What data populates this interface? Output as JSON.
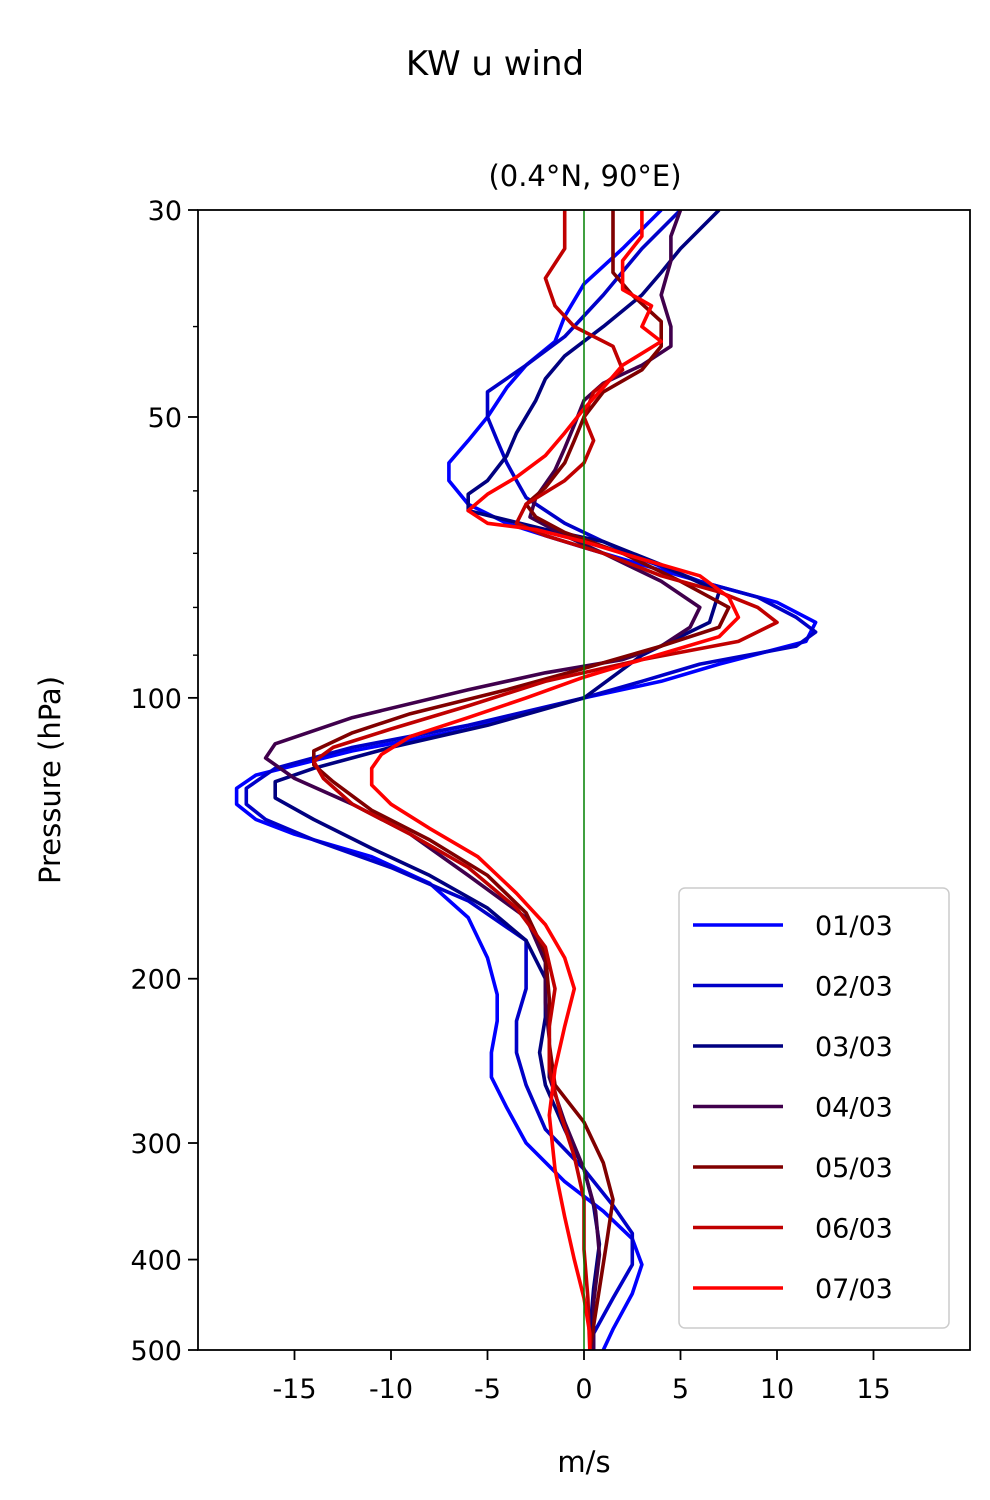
{
  "chart_data": {
    "type": "line",
    "title": "KW u wind",
    "subtitle": "(0.4°N, 90°E)",
    "xlabel": "m/s",
    "ylabel": "Pressure (hPa)",
    "xlim": [
      -20,
      20
    ],
    "ylim": [
      500,
      30
    ],
    "yscale": "log",
    "x_ticks": [
      -15,
      -10,
      -5,
      0,
      5,
      10,
      15
    ],
    "x_tick_labels": [
      "-15",
      "-10",
      "-5",
      "0",
      "5",
      "10",
      "15"
    ],
    "y_ticks": [
      30,
      50,
      100,
      200,
      300,
      400,
      500
    ],
    "y_tick_labels": [
      "30",
      "50",
      "100",
      "200",
      "300",
      "400",
      "500"
    ],
    "reference_line": {
      "x": 0,
      "color": "#008000"
    },
    "legend_position": "lower-right",
    "grid": false,
    "series": [
      {
        "name": "01/03",
        "color": "#0000ff",
        "points": [
          [
            4,
            30
          ],
          [
            2,
            33
          ],
          [
            0,
            36
          ],
          [
            -1,
            39
          ],
          [
            -1.5,
            41.5
          ],
          [
            -3,
            44
          ],
          [
            -4,
            46.5
          ],
          [
            -5,
            50
          ],
          [
            -6,
            53
          ],
          [
            -7,
            56
          ],
          [
            -7,
            58.5
          ],
          [
            -6,
            62
          ],
          [
            -4,
            65
          ],
          [
            -2,
            67
          ],
          [
            0,
            69
          ],
          [
            3,
            72
          ],
          [
            6,
            75
          ],
          [
            10,
            79
          ],
          [
            12,
            83
          ],
          [
            11.5,
            87
          ],
          [
            7,
            92
          ],
          [
            4,
            96
          ],
          [
            0,
            100
          ],
          [
            -6,
            108
          ],
          [
            -12,
            114
          ],
          [
            -17,
            121
          ],
          [
            -18,
            125
          ],
          [
            -18,
            130
          ],
          [
            -17,
            135
          ],
          [
            -15,
            140
          ],
          [
            -11,
            148
          ],
          [
            -8,
            158
          ],
          [
            -6,
            172
          ],
          [
            -5,
            190
          ],
          [
            -4.5,
            208
          ],
          [
            -4.5,
            222
          ],
          [
            -4.8,
            240
          ],
          [
            -4.8,
            255
          ],
          [
            -4,
            275
          ],
          [
            -3,
            300
          ],
          [
            -1,
            330
          ],
          [
            1,
            355
          ],
          [
            2.5,
            380
          ],
          [
            3,
            405
          ],
          [
            2.5,
            435
          ],
          [
            1.5,
            475
          ],
          [
            1,
            500
          ]
        ]
      },
      {
        "name": "02/03",
        "color": "#0000c8",
        "points": [
          [
            5,
            30
          ],
          [
            3,
            33
          ],
          [
            1,
            37
          ],
          [
            -1,
            41
          ],
          [
            -3,
            44
          ],
          [
            -5,
            47
          ],
          [
            -5,
            50
          ],
          [
            -4.5,
            53
          ],
          [
            -4,
            56
          ],
          [
            -3.5,
            58.5
          ],
          [
            -3,
            61
          ],
          [
            -1,
            65
          ],
          [
            1,
            68
          ],
          [
            3,
            71
          ],
          [
            6,
            75
          ],
          [
            9,
            78
          ],
          [
            11,
            82
          ],
          [
            12,
            85
          ],
          [
            11,
            88
          ],
          [
            6,
            92
          ],
          [
            3,
            96
          ],
          [
            0,
            100
          ],
          [
            -6,
            107
          ],
          [
            -12,
            113
          ],
          [
            -16,
            119
          ],
          [
            -17.5,
            125
          ],
          [
            -17.5,
            130
          ],
          [
            -16.5,
            135
          ],
          [
            -14,
            142
          ],
          [
            -10,
            152
          ],
          [
            -6,
            165
          ],
          [
            -3,
            182
          ],
          [
            -3,
            205
          ],
          [
            -3.5,
            222
          ],
          [
            -3.5,
            240
          ],
          [
            -3,
            260
          ],
          [
            -2,
            290
          ],
          [
            0,
            320
          ],
          [
            1.5,
            350
          ],
          [
            2.5,
            375
          ],
          [
            2.5,
            405
          ],
          [
            1.5,
            440
          ],
          [
            0.5,
            480
          ],
          [
            0.5,
            500
          ]
        ]
      },
      {
        "name": "03/03",
        "color": "#000080",
        "points": [
          [
            7,
            30
          ],
          [
            5,
            33
          ],
          [
            4,
            35
          ],
          [
            3,
            37
          ],
          [
            1,
            40
          ],
          [
            -1,
            43
          ],
          [
            -2,
            45.5
          ],
          [
            -2.5,
            48
          ],
          [
            -3.5,
            52
          ],
          [
            -4,
            55
          ],
          [
            -5,
            58.5
          ],
          [
            -6,
            60.5
          ],
          [
            -6,
            63
          ],
          [
            -2,
            66
          ],
          [
            1,
            68
          ],
          [
            4,
            72
          ],
          [
            7,
            77
          ],
          [
            6.5,
            83
          ],
          [
            3,
            90
          ],
          [
            0,
            100
          ],
          [
            -5,
            107
          ],
          [
            -10,
            113
          ],
          [
            -14,
            119
          ],
          [
            -16,
            123
          ],
          [
            -16,
            128
          ],
          [
            -14,
            135
          ],
          [
            -11,
            145
          ],
          [
            -8,
            155
          ],
          [
            -5,
            168
          ],
          [
            -3,
            182
          ],
          [
            -2,
            200
          ],
          [
            -2,
            220
          ],
          [
            -2.3,
            240
          ],
          [
            -2,
            260
          ],
          [
            -1,
            290
          ],
          [
            0,
            320
          ],
          [
            0.5,
            350
          ],
          [
            0.8,
            385
          ],
          [
            0.5,
            430
          ],
          [
            0.3,
            480
          ],
          [
            0.3,
            500
          ]
        ]
      },
      {
        "name": "04/03",
        "color": "#40004c",
        "points": [
          [
            5,
            30
          ],
          [
            4.5,
            32
          ],
          [
            4.5,
            34
          ],
          [
            4,
            37
          ],
          [
            4.5,
            40
          ],
          [
            4.5,
            42
          ],
          [
            3,
            44
          ],
          [
            1,
            46
          ],
          [
            0,
            48
          ],
          [
            -0.5,
            51
          ],
          [
            -1,
            54
          ],
          [
            -1.5,
            57
          ],
          [
            -2.5,
            61
          ],
          [
            -2.8,
            64
          ],
          [
            -1,
            67
          ],
          [
            1,
            70
          ],
          [
            4,
            75
          ],
          [
            6,
            80
          ],
          [
            5.5,
            84
          ],
          [
            4,
            88
          ],
          [
            2,
            91
          ],
          [
            -2,
            94
          ],
          [
            -6,
            98
          ],
          [
            -12,
            105
          ],
          [
            -16,
            112
          ],
          [
            -16.5,
            116
          ],
          [
            -15,
            122
          ],
          [
            -12,
            130
          ],
          [
            -9,
            140
          ],
          [
            -6,
            155
          ],
          [
            -3,
            172
          ],
          [
            -2,
            192
          ],
          [
            -2,
            212
          ],
          [
            -1.8,
            232
          ],
          [
            -1.8,
            255
          ],
          [
            -1,
            285
          ],
          [
            0,
            320
          ],
          [
            0.6,
            355
          ],
          [
            0.8,
            395
          ],
          [
            0.5,
            445
          ],
          [
            0.5,
            500
          ]
        ]
      },
      {
        "name": "05/03",
        "color": "#800000",
        "points": [
          [
            1.5,
            30
          ],
          [
            1.5,
            33
          ],
          [
            1.5,
            35
          ],
          [
            2.5,
            37
          ],
          [
            4,
            39.5
          ],
          [
            4,
            42
          ],
          [
            3,
            44.5
          ],
          [
            1,
            47
          ],
          [
            0,
            50
          ],
          [
            -0.5,
            53
          ],
          [
            -1,
            56
          ],
          [
            -2,
            59.5
          ],
          [
            -3,
            62
          ],
          [
            -2.5,
            64
          ],
          [
            -1,
            66.5
          ],
          [
            2,
            70
          ],
          [
            5,
            75
          ],
          [
            7.5,
            80
          ],
          [
            7,
            84
          ],
          [
            4,
            88
          ],
          [
            0,
            93
          ],
          [
            -4,
            98
          ],
          [
            -9,
            104
          ],
          [
            -12,
            109
          ],
          [
            -14,
            114
          ],
          [
            -14,
            118
          ],
          [
            -13,
            123
          ],
          [
            -11,
            132
          ],
          [
            -8,
            142
          ],
          [
            -5,
            155
          ],
          [
            -3,
            170
          ],
          [
            -2,
            188
          ],
          [
            -1.8,
            210
          ],
          [
            -1.8,
            235
          ],
          [
            -1.5,
            260
          ],
          [
            0,
            285
          ],
          [
            1,
            315
          ],
          [
            1.5,
            345
          ],
          [
            1.2,
            380
          ],
          [
            0.8,
            430
          ],
          [
            0.3,
            500
          ]
        ]
      },
      {
        "name": "06/03",
        "color": "#c00000",
        "points": [
          [
            -1,
            30
          ],
          [
            -1,
            33
          ],
          [
            -2,
            35.5
          ],
          [
            -1.5,
            38
          ],
          [
            -0.5,
            40
          ],
          [
            1.5,
            42
          ],
          [
            2,
            44.5
          ],
          [
            0.5,
            47
          ],
          [
            0,
            50
          ],
          [
            0.5,
            53
          ],
          [
            0,
            56
          ],
          [
            -1,
            58.5
          ],
          [
            -3,
            62
          ],
          [
            -3.5,
            65
          ],
          [
            -2,
            67
          ],
          [
            1,
            70
          ],
          [
            4,
            74
          ],
          [
            7,
            77
          ],
          [
            9,
            80
          ],
          [
            10,
            83
          ],
          [
            8,
            87
          ],
          [
            3,
            91
          ],
          [
            -2,
            96
          ],
          [
            -6,
            102
          ],
          [
            -10,
            108
          ],
          [
            -13,
            113
          ],
          [
            -14,
            117
          ],
          [
            -13.5,
            122
          ],
          [
            -12,
            130
          ],
          [
            -9,
            140
          ],
          [
            -6,
            152
          ],
          [
            -3.5,
            168
          ],
          [
            -2,
            185
          ],
          [
            -1.5,
            205
          ],
          [
            -1.8,
            225
          ],
          [
            -1.8,
            250
          ],
          [
            -1.2,
            280
          ],
          [
            -0.5,
            310
          ],
          [
            0,
            345
          ],
          [
            0,
            390
          ],
          [
            0.2,
            440
          ],
          [
            0.3,
            500
          ]
        ]
      },
      {
        "name": "07/03",
        "color": "#ff0000",
        "points": [
          [
            3,
            30
          ],
          [
            3,
            32
          ],
          [
            2,
            34
          ],
          [
            2,
            36.5
          ],
          [
            3.5,
            38
          ],
          [
            3,
            40
          ],
          [
            4,
            41.5
          ],
          [
            2,
            44
          ],
          [
            1,
            46.5
          ],
          [
            0,
            49
          ],
          [
            -1,
            52
          ],
          [
            -2,
            55
          ],
          [
            -3.5,
            58
          ],
          [
            -5,
            60.5
          ],
          [
            -6,
            63
          ],
          [
            -5,
            65
          ],
          [
            -2.5,
            66
          ],
          [
            0,
            68
          ],
          [
            3,
            71
          ],
          [
            6,
            74
          ],
          [
            7.5,
            78
          ],
          [
            8,
            82
          ],
          [
            7,
            86
          ],
          [
            3,
            91
          ],
          [
            0,
            95
          ],
          [
            -3,
            100
          ],
          [
            -6,
            105
          ],
          [
            -9,
            110
          ],
          [
            -10.5,
            115
          ],
          [
            -11,
            119
          ],
          [
            -11,
            124
          ],
          [
            -10,
            130
          ],
          [
            -8,
            138
          ],
          [
            -5.5,
            148
          ],
          [
            -3.5,
            162
          ],
          [
            -2,
            175
          ],
          [
            -1,
            190
          ],
          [
            -0.5,
            205
          ],
          [
            -1,
            225
          ],
          [
            -1.5,
            250
          ],
          [
            -1.8,
            280
          ],
          [
            -1.5,
            320
          ],
          [
            -1,
            360
          ],
          [
            -0.5,
            400
          ],
          [
            0,
            440
          ],
          [
            0.3,
            480
          ],
          [
            0.3,
            500
          ]
        ]
      }
    ]
  }
}
